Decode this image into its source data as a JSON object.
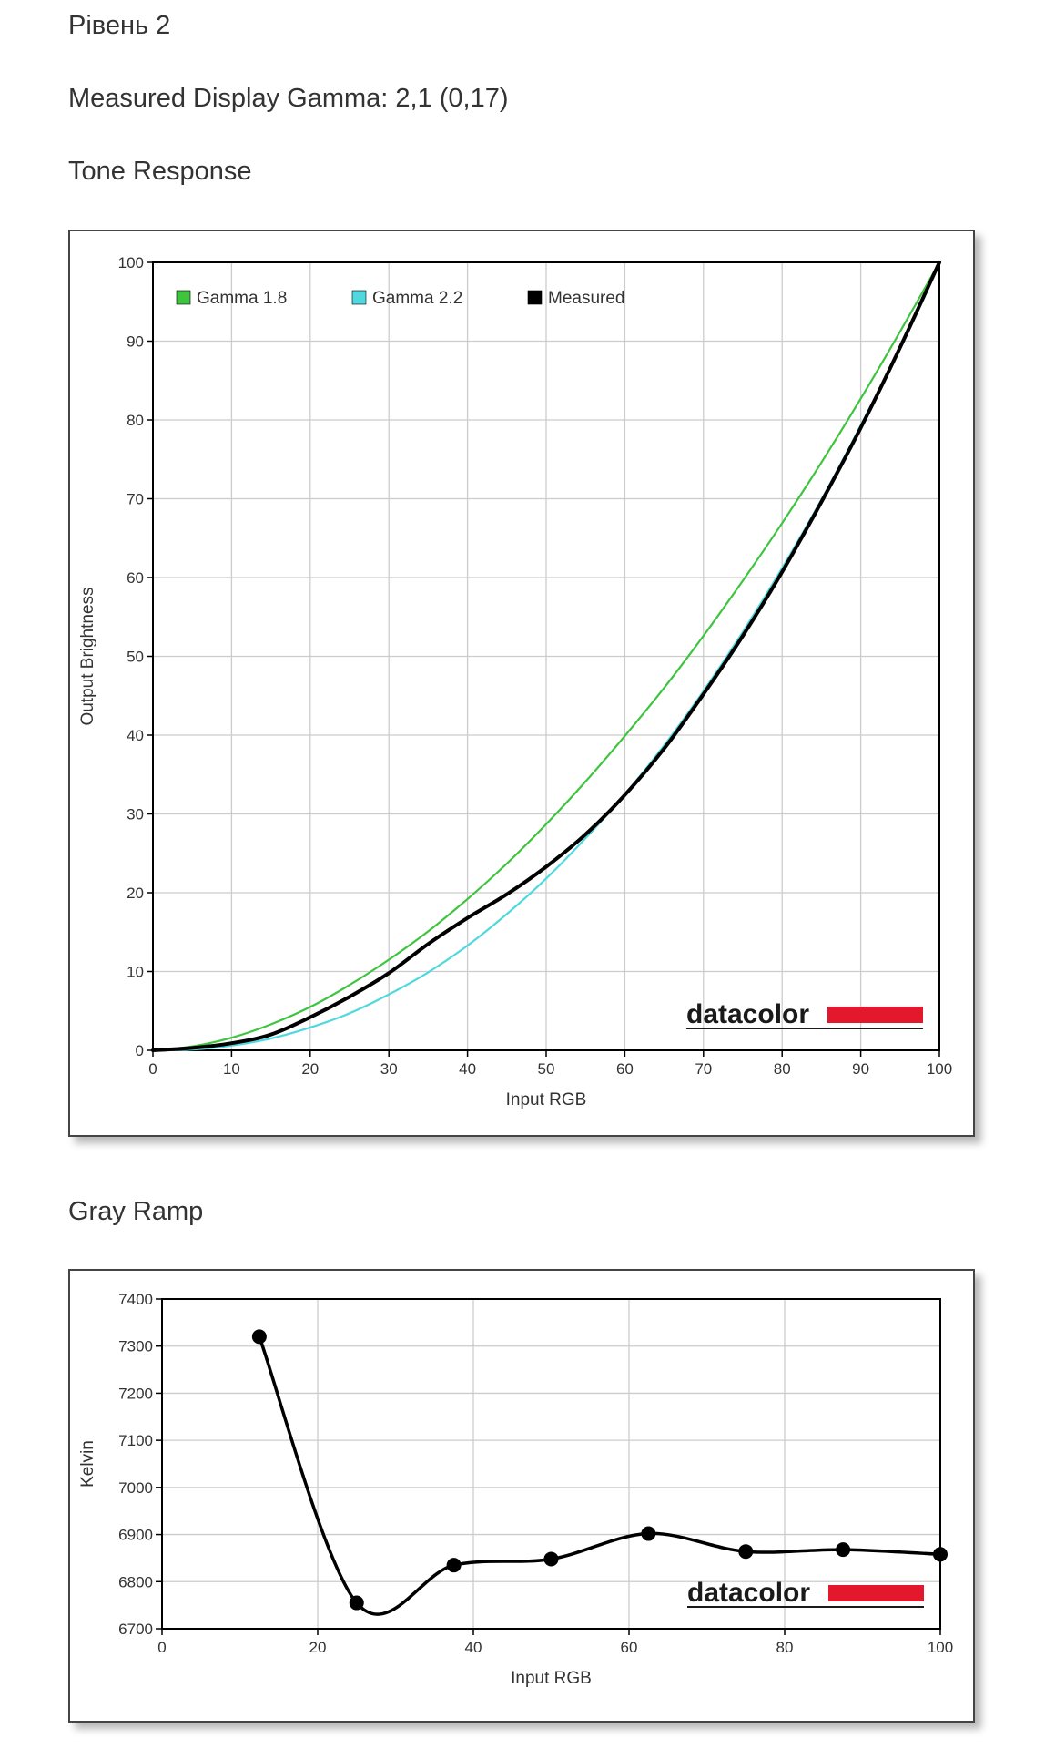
{
  "page": {
    "level_title": "Рівень 2",
    "gamma_line": "Measured Display Gamma: 2,1 (0,17)",
    "tone_heading": "Tone Response",
    "gray_heading": "Gray Ramp"
  },
  "branding": {
    "logo_text": "datacolor",
    "logo_bar_color": "#e3182d"
  },
  "colors": {
    "gamma18": "#3ec43e",
    "gamma22": "#4fd8de",
    "measured": "#000000",
    "grid": "#cccccc",
    "axis": "#000000"
  },
  "chart_data": [
    {
      "type": "line",
      "xlabel": "Input RGB",
      "ylabel": "Output Brightness",
      "xlim": [
        0,
        100
      ],
      "ylim": [
        0,
        100
      ],
      "xticks": [
        0,
        10,
        20,
        30,
        40,
        50,
        60,
        70,
        80,
        90,
        100
      ],
      "yticks": [
        0,
        10,
        20,
        30,
        40,
        50,
        60,
        70,
        80,
        90,
        100
      ],
      "grid": true,
      "legend_position": "top",
      "series": [
        {
          "name": "Gamma 1.8",
          "color": "#3ec43e",
          "x": [
            0,
            5,
            10,
            15,
            20,
            25,
            30,
            35,
            40,
            45,
            50,
            55,
            60,
            65,
            70,
            75,
            80,
            85,
            90,
            95,
            100
          ],
          "y": [
            0,
            0.5,
            1.6,
            3.3,
            5.5,
            8.3,
            11.5,
            15.1,
            19.2,
            23.7,
            28.7,
            34.1,
            39.9,
            46.0,
            52.6,
            59.6,
            66.9,
            74.6,
            82.7,
            91.2,
            100
          ]
        },
        {
          "name": "Gamma 2.2",
          "color": "#4fd8de",
          "x": [
            0,
            5,
            10,
            15,
            20,
            25,
            30,
            35,
            40,
            45,
            50,
            55,
            60,
            65,
            70,
            75,
            80,
            85,
            90,
            95,
            100
          ],
          "y": [
            0,
            0.1,
            0.6,
            1.5,
            2.9,
            4.7,
            7.1,
            9.9,
            13.3,
            17.3,
            21.8,
            26.9,
            32.5,
            38.7,
            45.6,
            53.1,
            61.2,
            69.9,
            79.3,
            89.3,
            100
          ]
        },
        {
          "name": "Measured",
          "color": "#000000",
          "x": [
            0,
            5,
            10,
            15,
            20,
            25,
            30,
            35,
            40,
            45,
            50,
            55,
            60,
            65,
            70,
            75,
            80,
            85,
            90,
            95,
            100
          ],
          "y": [
            0,
            0.3,
            0.9,
            2.0,
            4.2,
            6.8,
            9.8,
            13.5,
            16.8,
            19.8,
            23.3,
            27.4,
            32.4,
            38.3,
            45.2,
            52.6,
            60.7,
            69.6,
            79.0,
            89.2,
            100
          ]
        }
      ]
    },
    {
      "type": "line",
      "xlabel": "Input RGB",
      "ylabel": "Kelvin",
      "xlim": [
        0,
        100
      ],
      "ylim": [
        6700,
        7400
      ],
      "xticks": [
        0,
        20,
        40,
        60,
        80,
        100
      ],
      "yticks": [
        6700,
        6800,
        6900,
        7000,
        7100,
        7200,
        7300,
        7400
      ],
      "grid": true,
      "series": [
        {
          "color": "#000000",
          "x": [
            12.5,
            25,
            37.5,
            50,
            62.5,
            75,
            87.5,
            100
          ],
          "y": [
            7320,
            6755,
            6835,
            6848,
            6902,
            6864,
            6868,
            6858
          ]
        }
      ]
    }
  ]
}
